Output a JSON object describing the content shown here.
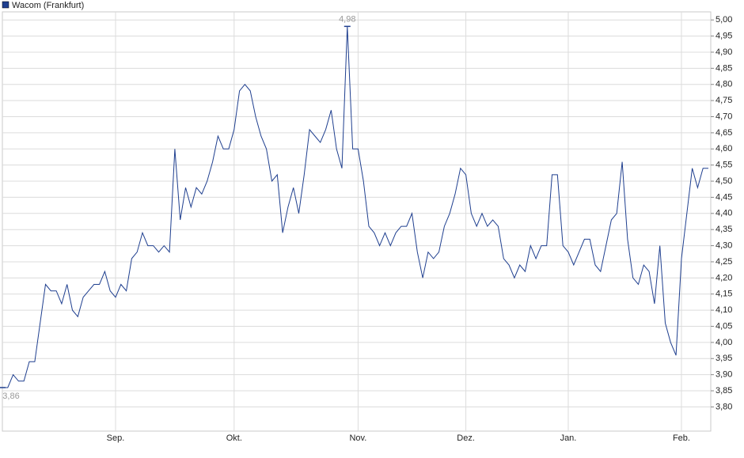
{
  "chart_data": {
    "type": "line",
    "series": [
      {
        "name": "Wacom (Frankfurt)",
        "color": "#1f3f8f",
        "values": [
          3.86,
          3.86,
          3.9,
          3.88,
          3.88,
          3.94,
          3.94,
          4.06,
          4.18,
          4.16,
          4.16,
          4.12,
          4.18,
          4.1,
          4.08,
          4.14,
          4.16,
          4.18,
          4.18,
          4.22,
          4.16,
          4.14,
          4.18,
          4.16,
          4.26,
          4.28,
          4.34,
          4.3,
          4.3,
          4.28,
          4.3,
          4.28,
          4.6,
          4.38,
          4.48,
          4.42,
          4.48,
          4.46,
          4.5,
          4.56,
          4.64,
          4.6,
          4.6,
          4.66,
          4.78,
          4.8,
          4.78,
          4.7,
          4.64,
          4.6,
          4.5,
          4.52,
          4.34,
          4.42,
          4.48,
          4.4,
          4.52,
          4.66,
          4.64,
          4.62,
          4.66,
          4.72,
          4.6,
          4.54,
          4.98,
          4.6,
          4.6,
          4.5,
          4.36,
          4.34,
          4.3,
          4.34,
          4.3,
          4.34,
          4.36,
          4.36,
          4.4,
          4.28,
          4.2,
          4.28,
          4.26,
          4.28,
          4.36,
          4.4,
          4.46,
          4.54,
          4.52,
          4.4,
          4.36,
          4.4,
          4.36,
          4.38,
          4.36,
          4.26,
          4.24,
          4.2,
          4.24,
          4.22,
          4.3,
          4.26,
          4.3,
          4.3,
          4.52,
          4.52,
          4.3,
          4.28,
          4.24,
          4.28,
          4.32,
          4.32,
          4.24,
          4.22,
          4.3,
          4.38,
          4.4,
          4.56,
          4.32,
          4.2,
          4.18,
          4.24,
          4.22,
          4.12,
          4.3,
          4.06,
          4.0,
          3.96,
          4.26,
          4.4,
          4.54,
          4.48,
          4.54,
          4.54
        ]
      }
    ],
    "categories": [
      null,
      null,
      null,
      null,
      null,
      null,
      null,
      null,
      null,
      null,
      null,
      null,
      null,
      null,
      null,
      null,
      null,
      null,
      null,
      null,
      null,
      "Sep.",
      null,
      null,
      null,
      null,
      null,
      null,
      null,
      null,
      null,
      null,
      null,
      null,
      null,
      null,
      null,
      null,
      null,
      null,
      null,
      null,
      null,
      "Okt.",
      null,
      null,
      null,
      null,
      null,
      null,
      null,
      null,
      null,
      null,
      null,
      null,
      null,
      null,
      null,
      null,
      null,
      null,
      null,
      null,
      null,
      null,
      "Nov.",
      null,
      null,
      null,
      null,
      null,
      null,
      null,
      null,
      null,
      null,
      null,
      null,
      null,
      null,
      null,
      null,
      null,
      null,
      null,
      "Dez.",
      null,
      null,
      null,
      null,
      null,
      null,
      null,
      null,
      null,
      null,
      null,
      null,
      null,
      null,
      null,
      null,
      null,
      null,
      "Jan.",
      null,
      null,
      null,
      null,
      null,
      null,
      null,
      null,
      null,
      null,
      null,
      null,
      null,
      null,
      null,
      null,
      null,
      null,
      null,
      null,
      "Feb.",
      null,
      null,
      null,
      null,
      null
    ],
    "ylim": [
      3.725,
      5.025
    ],
    "yticks": [
      {
        "value": 3.8,
        "label": "3,80"
      },
      {
        "value": 3.85,
        "label": "3,85"
      },
      {
        "value": 3.9,
        "label": "3,90"
      },
      {
        "value": 3.95,
        "label": "3,95"
      },
      {
        "value": 4.0,
        "label": "4,00"
      },
      {
        "value": 4.05,
        "label": "4,05"
      },
      {
        "value": 4.1,
        "label": "4,10"
      },
      {
        "value": 4.15,
        "label": "4,15"
      },
      {
        "value": 4.2,
        "label": "4,20"
      },
      {
        "value": 4.25,
        "label": "4,25"
      },
      {
        "value": 4.3,
        "label": "4,30"
      },
      {
        "value": 4.35,
        "label": "4,35"
      },
      {
        "value": 4.4,
        "label": "4,40"
      },
      {
        "value": 4.45,
        "label": "4,45"
      },
      {
        "value": 4.5,
        "label": "4,50"
      },
      {
        "value": 4.55,
        "label": "4,55"
      },
      {
        "value": 4.6,
        "label": "4,60"
      },
      {
        "value": 4.65,
        "label": "4,65"
      },
      {
        "value": 4.7,
        "label": "4,70"
      },
      {
        "value": 4.75,
        "label": "4,75"
      },
      {
        "value": 4.8,
        "label": "4,80"
      },
      {
        "value": 4.85,
        "label": "4,85"
      },
      {
        "value": 4.9,
        "label": "4,90"
      },
      {
        "value": 4.95,
        "label": "4,95"
      },
      {
        "value": 5.0,
        "label": "5,00"
      }
    ],
    "annotations": [
      {
        "value": 4.98,
        "label": "4,98"
      },
      {
        "value": 3.86,
        "label": "3,86"
      }
    ],
    "grid": true
  }
}
